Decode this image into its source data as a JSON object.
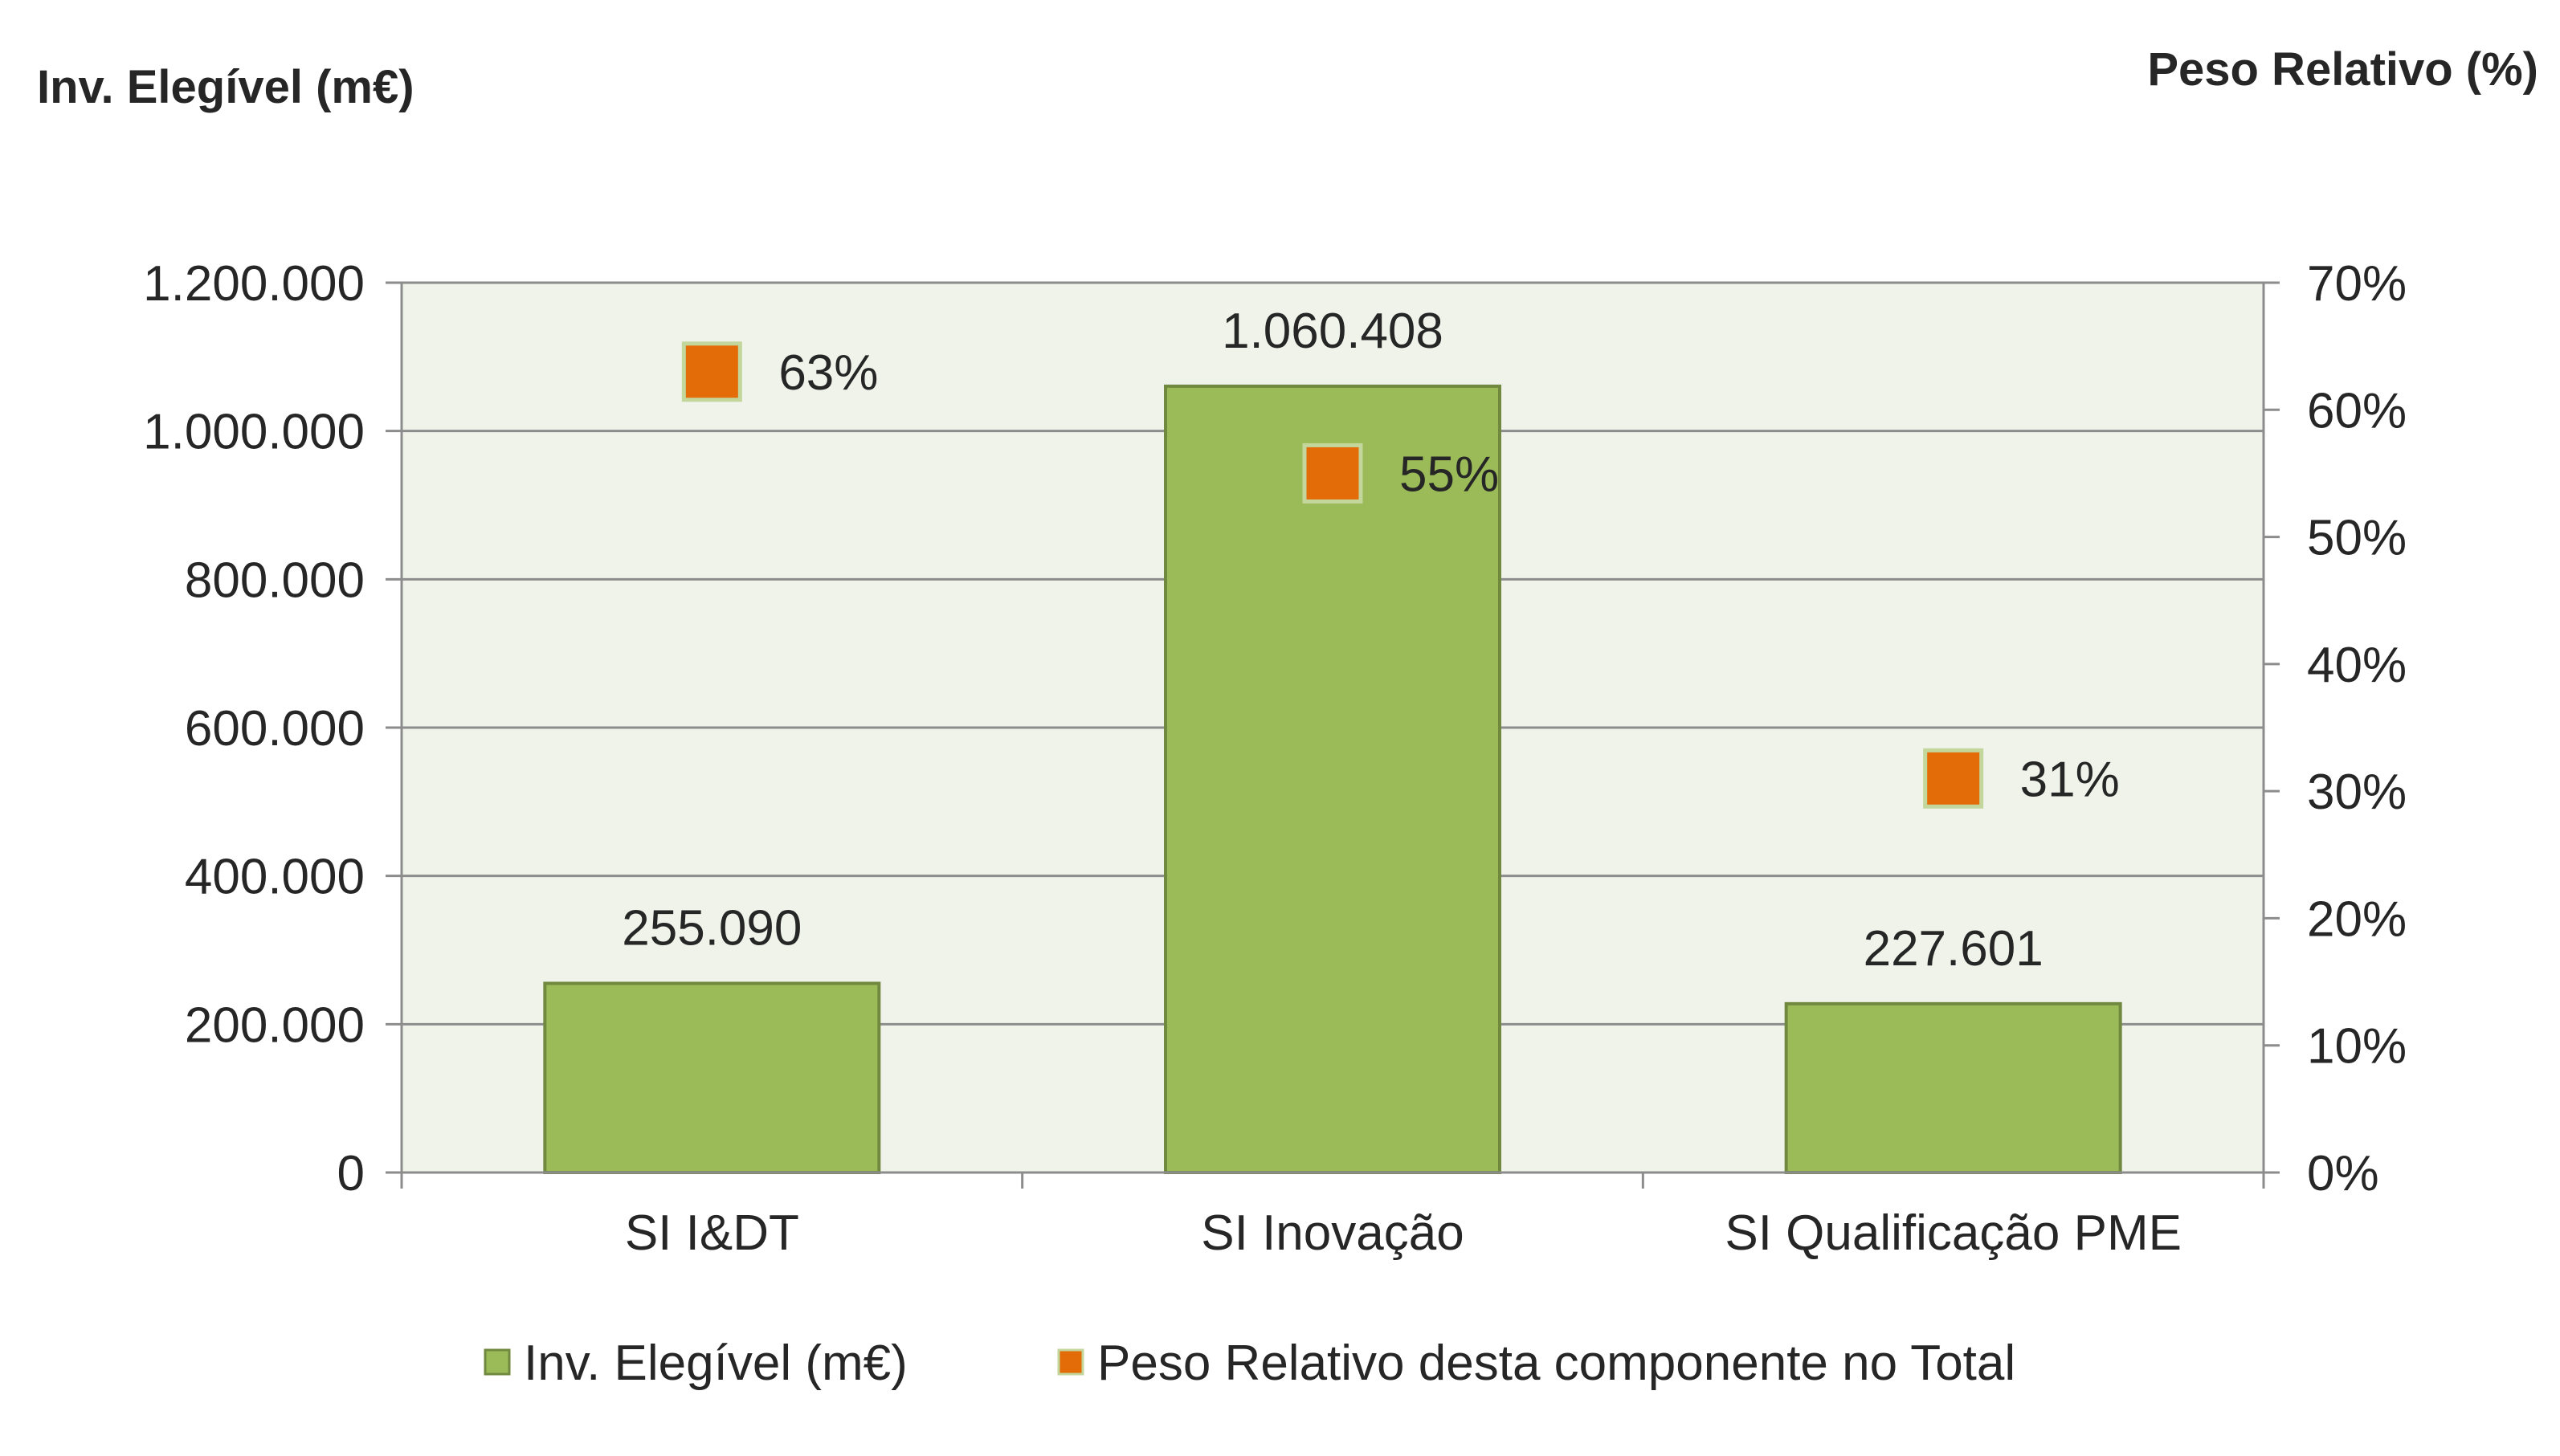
{
  "chart_data": {
    "type": "bar",
    "categories": [
      "SI I&DT",
      "SI Inovação",
      "SI Qualificação PME"
    ],
    "series": [
      {
        "name": "Inv. Elegível (m€)",
        "type": "bar",
        "axis": "left",
        "values": [
          255090,
          1060408,
          227601
        ],
        "labels": [
          "255.090",
          "1.060.408",
          "227.601"
        ]
      },
      {
        "name": "Peso Relativo desta componente no Total",
        "type": "scatter",
        "axis": "right",
        "values": [
          63,
          55,
          31
        ],
        "labels": [
          "63%",
          "55%",
          "31%"
        ]
      }
    ],
    "ylabel_left": "Inv. Elegível (m€)",
    "ylabel_right": "Peso Relativo (%)",
    "ylim_left": [
      0,
      1200000
    ],
    "ylim_right": [
      0,
      70
    ],
    "yticks_left": [
      "0",
      "200.000",
      "400.000",
      "600.000",
      "800.000",
      "1.000.000",
      "1.200.000"
    ],
    "yticks_right": [
      "0%",
      "10%",
      "20%",
      "30%",
      "40%",
      "50%",
      "60%",
      "70%"
    ],
    "grid": true,
    "legend_position": "bottom",
    "colors": {
      "bar_fill": "#9bbb59",
      "bar_stroke": "#71893f",
      "marker_fill": "#e36c09",
      "marker_stroke": "#c3d69b",
      "plot_bg": "#eff3ea",
      "grid": "#8c8c8c",
      "axis": "#8c8c8c"
    }
  }
}
